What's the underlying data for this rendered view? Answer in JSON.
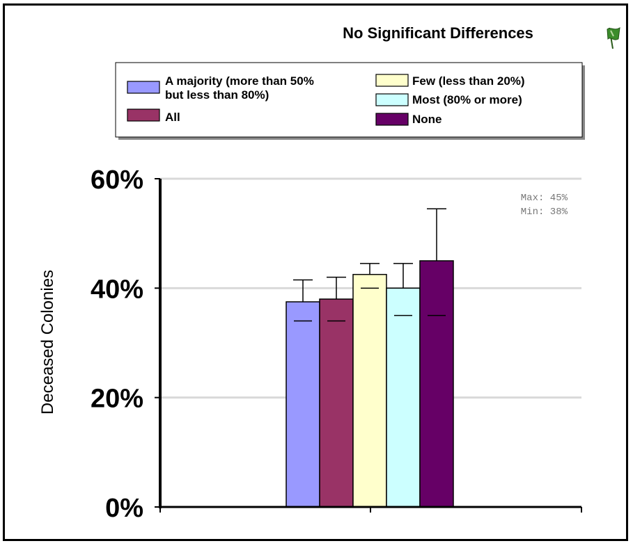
{
  "chart_data": {
    "type": "bar",
    "title": "No Significant Differences",
    "ylabel": "Deceased Colonies",
    "xlabel": "",
    "ylim": [
      0,
      60
    ],
    "yticks": [
      {
        "value": 0,
        "label": "0%"
      },
      {
        "value": 20,
        "label": "20%"
      },
      {
        "value": 40,
        "label": "40%"
      },
      {
        "value": 60,
        "label": "60%"
      }
    ],
    "grid": true,
    "legend_position": "top",
    "series": [
      {
        "name": "A majority (more than 50% but less than 80%)",
        "legend_lines": [
          "A majority (more than 50%",
          "but less than 80%)"
        ],
        "value": 37.5,
        "error_low": 34,
        "error_high": 41.5,
        "color": "#9999ff"
      },
      {
        "name": "All",
        "legend_lines": [
          "All"
        ],
        "value": 38,
        "error_low": 34,
        "error_high": 42,
        "color": "#993366"
      },
      {
        "name": "Few (less than 20%)",
        "legend_lines": [
          "Few (less than 20%)"
        ],
        "value": 42.5,
        "error_low": 40,
        "error_high": 44.5,
        "color": "#ffffcc"
      },
      {
        "name": "Most (80% or more)",
        "legend_lines": [
          "Most (80% or more)"
        ],
        "value": 40,
        "error_low": 35,
        "error_high": 44.5,
        "color": "#ccffff"
      },
      {
        "name": "None",
        "legend_lines": [
          "None"
        ],
        "value": 45,
        "error_low": 35,
        "error_high": 54.5,
        "color": "#660066"
      }
    ],
    "bar_order": [
      0,
      1,
      2,
      3,
      4
    ],
    "legend_order": [
      0,
      2,
      3,
      1,
      4
    ],
    "annotations": [
      "Max: 45%",
      "Min: 38%"
    ]
  },
  "icons": {
    "corner": "flag-icon",
    "flag_color": "#3c8c2c"
  }
}
